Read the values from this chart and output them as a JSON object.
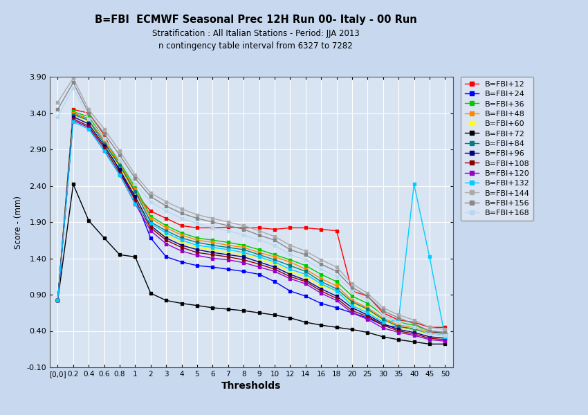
{
  "title": "B=FBI  ECMWF Seasonal Prec 12H Run 00- Italy - 00 Run",
  "subtitle1": "Stratification : All Italian Stations - Period: JJA 2013",
  "subtitle2": "n contingency table interval from 6327 to 7282",
  "xlabel": "Thresholds",
  "ylabel": "Score - (mm)",
  "ylim": [
    -0.1,
    3.9
  ],
  "x_labels": [
    "[0,0]",
    "0.2",
    "0.4",
    "0.6",
    "0.8",
    "1",
    "2",
    "3",
    "4",
    "5",
    "6",
    "7",
    "8",
    "9",
    "10",
    "12",
    "14",
    "16",
    "18",
    "20",
    "25",
    "30",
    "35",
    "40",
    "45",
    "50"
  ],
  "background_color": "#c8d8ee",
  "plot_bg_color": "#d8e4f2",
  "series": [
    {
      "label": "B=FBI+12",
      "color": "#ff0000",
      "values": [
        0.82,
        3.45,
        3.4,
        3.1,
        2.65,
        2.3,
        2.05,
        1.95,
        1.85,
        1.82,
        1.82,
        1.83,
        1.82,
        1.82,
        1.8,
        1.82,
        1.82,
        1.8,
        1.78,
        0.95,
        0.88,
        0.65,
        0.55,
        0.52,
        0.45,
        0.45
      ]
    },
    {
      "label": "B=FBI+24",
      "color": "#0000ff",
      "values": [
        0.82,
        3.4,
        3.32,
        3.02,
        2.6,
        2.22,
        1.68,
        1.42,
        1.35,
        1.3,
        1.28,
        1.25,
        1.22,
        1.18,
        1.08,
        0.95,
        0.88,
        0.78,
        0.72,
        0.65,
        0.58,
        0.48,
        0.45,
        0.42,
        0.38,
        0.38
      ]
    },
    {
      "label": "B=FBI+36",
      "color": "#00cc00",
      "values": [
        0.82,
        3.42,
        3.35,
        3.05,
        2.72,
        2.38,
        1.98,
        1.85,
        1.75,
        1.68,
        1.65,
        1.62,
        1.58,
        1.52,
        1.45,
        1.38,
        1.3,
        1.18,
        1.08,
        0.88,
        0.78,
        0.62,
        0.52,
        0.48,
        0.4,
        0.38
      ]
    },
    {
      "label": "B=FBI+48",
      "color": "#ff8800",
      "values": [
        0.82,
        3.4,
        3.32,
        3.02,
        2.7,
        2.35,
        1.95,
        1.82,
        1.72,
        1.65,
        1.62,
        1.58,
        1.55,
        1.48,
        1.42,
        1.35,
        1.25,
        1.12,
        1.02,
        0.82,
        0.72,
        0.58,
        0.48,
        0.45,
        0.38,
        0.36
      ]
    },
    {
      "label": "B=FBI+60",
      "color": "#ffff00",
      "values": [
        0.82,
        3.38,
        3.28,
        2.98,
        2.65,
        2.28,
        1.8,
        1.72,
        1.62,
        1.55,
        1.52,
        1.48,
        1.45,
        1.4,
        1.32,
        1.22,
        1.15,
        1.02,
        0.95,
        0.78,
        0.68,
        0.55,
        0.45,
        0.42,
        0.35,
        0.33
      ]
    },
    {
      "label": "B=FBI+72",
      "color": "#000000",
      "values": [
        0.82,
        2.42,
        1.92,
        1.68,
        1.45,
        1.42,
        0.92,
        0.82,
        0.78,
        0.75,
        0.72,
        0.7,
        0.68,
        0.65,
        0.62,
        0.58,
        0.52,
        0.48,
        0.45,
        0.42,
        0.38,
        0.32,
        0.28,
        0.25,
        0.22,
        0.22
      ]
    },
    {
      "label": "B=FBI+84",
      "color": "#008080",
      "values": [
        0.82,
        3.38,
        3.3,
        2.98,
        2.68,
        2.32,
        1.9,
        1.78,
        1.68,
        1.62,
        1.58,
        1.55,
        1.52,
        1.45,
        1.38,
        1.3,
        1.22,
        1.08,
        0.98,
        0.8,
        0.7,
        0.56,
        0.46,
        0.43,
        0.36,
        0.34
      ]
    },
    {
      "label": "B=FBI+96",
      "color": "#000080",
      "values": [
        0.82,
        3.35,
        3.25,
        2.95,
        2.62,
        2.25,
        1.85,
        1.68,
        1.58,
        1.52,
        1.48,
        1.45,
        1.42,
        1.35,
        1.28,
        1.18,
        1.1,
        0.98,
        0.88,
        0.72,
        0.62,
        0.5,
        0.42,
        0.38,
        0.32,
        0.3
      ]
    },
    {
      "label": "B=FBI+108",
      "color": "#8b0000",
      "values": [
        0.82,
        3.32,
        3.22,
        2.92,
        2.58,
        2.2,
        1.82,
        1.65,
        1.55,
        1.48,
        1.45,
        1.42,
        1.38,
        1.32,
        1.25,
        1.15,
        1.08,
        0.95,
        0.85,
        0.68,
        0.6,
        0.48,
        0.4,
        0.36,
        0.3,
        0.28
      ]
    },
    {
      "label": "B=FBI+120",
      "color": "#9900cc",
      "values": [
        0.82,
        3.3,
        3.2,
        2.88,
        2.55,
        2.15,
        1.78,
        1.6,
        1.5,
        1.44,
        1.4,
        1.38,
        1.34,
        1.28,
        1.22,
        1.12,
        1.05,
        0.92,
        0.82,
        0.65,
        0.56,
        0.44,
        0.38,
        0.34,
        0.28,
        0.26
      ]
    },
    {
      "label": "B=FBI+132",
      "color": "#00ccff",
      "values": [
        0.82,
        3.28,
        3.18,
        2.88,
        2.55,
        2.15,
        1.88,
        1.75,
        1.65,
        1.58,
        1.55,
        1.52,
        1.48,
        1.42,
        1.35,
        1.25,
        1.18,
        1.05,
        0.95,
        0.75,
        0.65,
        0.52,
        0.55,
        2.42,
        1.42,
        0.32
      ]
    },
    {
      "label": "B=FBI+144",
      "color": "#aaaaaa",
      "values": [
        3.55,
        3.88,
        3.45,
        3.18,
        2.88,
        2.55,
        2.3,
        2.18,
        2.08,
        2.0,
        1.95,
        1.9,
        1.85,
        1.78,
        1.7,
        1.58,
        1.5,
        1.38,
        1.28,
        1.05,
        0.92,
        0.72,
        0.62,
        0.55,
        0.45,
        0.42
      ]
    },
    {
      "label": "B=FBI+156",
      "color": "#888888",
      "values": [
        3.45,
        3.82,
        3.4,
        3.12,
        2.82,
        2.5,
        2.25,
        2.12,
        2.02,
        1.95,
        1.9,
        1.85,
        1.8,
        1.72,
        1.65,
        1.52,
        1.45,
        1.32,
        1.22,
        1.0,
        0.88,
        0.68,
        0.58,
        0.5,
        0.4,
        0.38
      ]
    },
    {
      "label": "B=FBI+168",
      "color": "#b8d8f0",
      "values": [
        3.35,
        3.75,
        3.32,
        3.05,
        2.75,
        2.42,
        2.18,
        2.05,
        1.95,
        1.88,
        1.82,
        1.78,
        1.72,
        1.65,
        1.58,
        1.45,
        1.38,
        1.25,
        1.15,
        0.95,
        0.82,
        0.62,
        0.52,
        0.45,
        0.36,
        0.34
      ]
    }
  ]
}
